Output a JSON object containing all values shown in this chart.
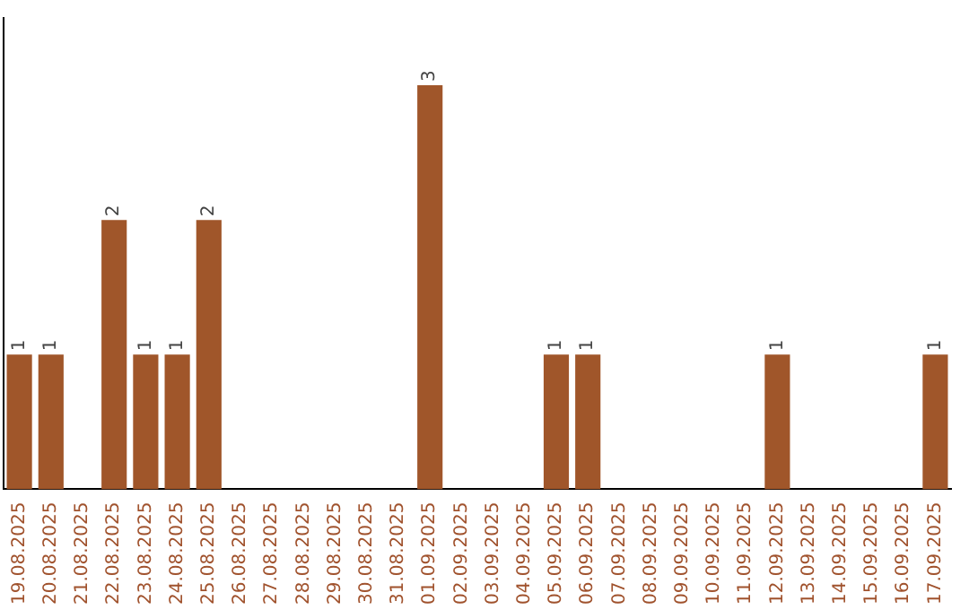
{
  "chart_data": {
    "type": "bar",
    "categories": [
      "19.08.2025",
      "20.08.2025",
      "21.08.2025",
      "22.08.2025",
      "23.08.2025",
      "24.08.2025",
      "25.08.2025",
      "26.08.2025",
      "27.08.2025",
      "28.08.2025",
      "29.08.2025",
      "30.08.2025",
      "31.08.2025",
      "01.09.2025",
      "02.09.2025",
      "03.09.2025",
      "04.09.2025",
      "05.09.2025",
      "06.09.2025",
      "07.09.2025",
      "08.09.2025",
      "09.09.2025",
      "10.09.2025",
      "11.09.2025",
      "12.09.2025",
      "13.09.2025",
      "14.09.2025",
      "15.09.2025",
      "16.09.2025",
      "17.09.2025"
    ],
    "values": [
      1,
      1,
      0,
      2,
      1,
      1,
      2,
      0,
      0,
      0,
      0,
      0,
      0,
      3,
      0,
      0,
      0,
      1,
      1,
      0,
      0,
      0,
      0,
      0,
      1,
      0,
      0,
      0,
      0,
      1
    ],
    "value_labels": [
      "1",
      "1",
      null,
      "2",
      "1",
      "1",
      "2",
      null,
      null,
      null,
      null,
      null,
      null,
      "3",
      null,
      null,
      null,
      "1",
      "1",
      null,
      null,
      null,
      null,
      null,
      "1",
      null,
      null,
      null,
      null,
      "1"
    ],
    "color": "#a0562a",
    "grid": false,
    "legend": false,
    "tick_labels": "x"
  }
}
